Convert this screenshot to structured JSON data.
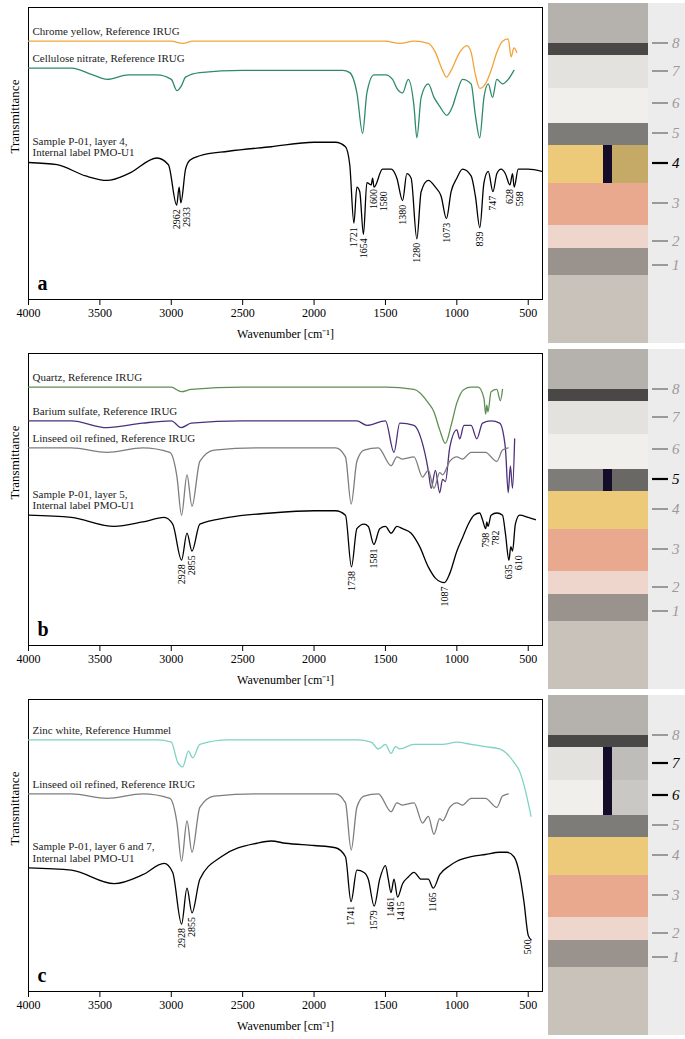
{
  "chart_data": [
    {
      "type": "line",
      "panel_label": "a",
      "x_label": "Wavenumber [cm⁻¹]",
      "y_label": "Transmittance",
      "xlim": [
        4000,
        400
      ],
      "xticks": [
        4000,
        3500,
        3000,
        2500,
        2000,
        1500,
        1000,
        500
      ],
      "ylim": [
        -20,
        110
      ],
      "tick_labels": "x",
      "series": [
        {
          "name": "Chrome yellow, Reference IRUG",
          "color": "#f2a33a",
          "x": [
            4000,
            3600,
            3000,
            2920,
            2850,
            2400,
            2000,
            1700,
            1500,
            1400,
            1300,
            1200,
            1150,
            1100,
            1073,
            1040,
            980,
            930,
            900,
            870,
            839,
            800,
            760,
            720,
            680,
            640,
            620,
            600,
            580
          ],
          "values": [
            95,
            95,
            95,
            94,
            95,
            95,
            95,
            95,
            95,
            94,
            95,
            94,
            90,
            82,
            79,
            82,
            90,
            93,
            90,
            80,
            74,
            76,
            82,
            90,
            95,
            96,
            88,
            92,
            90
          ]
        },
        {
          "name": "Cellulose nitrate, Reference IRUG",
          "color": "#2e8a6b",
          "x": [
            4000,
            3700,
            3550,
            3450,
            3300,
            3100,
            3000,
            2960,
            2930,
            2900,
            2800,
            2500,
            2200,
            2000,
            1800,
            1750,
            1700,
            1660,
            1630,
            1580,
            1500,
            1450,
            1420,
            1380,
            1340,
            1300,
            1280,
            1250,
            1200,
            1160,
            1120,
            1070,
            1030,
            1000,
            960,
            900,
            870,
            840,
            810,
            780,
            750,
            720,
            680,
            640,
            600
          ],
          "values": [
            83,
            83,
            80,
            78,
            80,
            80,
            78,
            73,
            75,
            79,
            81,
            82,
            82,
            82,
            82,
            81,
            72,
            54,
            72,
            80,
            80,
            78,
            74,
            72,
            78,
            66,
            52,
            70,
            76,
            70,
            66,
            62,
            66,
            72,
            78,
            76,
            62,
            52,
            70,
            76,
            70,
            78,
            76,
            78,
            82
          ]
        },
        {
          "name": "Sample P-01, layer 4,\nInternal label PMO-U1",
          "color": "#000000",
          "x": [
            4000,
            3800,
            3600,
            3450,
            3300,
            3100,
            3020,
            2962,
            2945,
            2933,
            2900,
            2870,
            2800,
            2600,
            2300,
            2000,
            1850,
            1780,
            1750,
            1721,
            1700,
            1680,
            1654,
            1630,
            1600,
            1590,
            1580,
            1520,
            1460,
            1420,
            1380,
            1350,
            1320,
            1280,
            1250,
            1200,
            1150,
            1110,
            1073,
            1040,
            1000,
            960,
            900,
            870,
            839,
            810,
            780,
            747,
            720,
            690,
            660,
            628,
            610,
            598,
            570,
            500,
            400
          ],
          "values": [
            41,
            40,
            35,
            33,
            36,
            43,
            40,
            22,
            30,
            23,
            38,
            42,
            44,
            46,
            48,
            50,
            50,
            48,
            40,
            14,
            30,
            28,
            9,
            32,
            31,
            34,
            30,
            38,
            38,
            34,
            24,
            36,
            34,
            7,
            28,
            33,
            30,
            26,
            16,
            28,
            34,
            38,
            35,
            26,
            12,
            32,
            37,
            28,
            36,
            38,
            36,
            31,
            36,
            30,
            38,
            38,
            37
          ],
          "annotations": [
            2962,
            2933,
            1721,
            1654,
            1600,
            1580,
            1380,
            1280,
            1073,
            839,
            747,
            628,
            598
          ]
        }
      ],
      "layers": [
        1,
        2,
        3,
        4,
        5,
        6,
        7,
        8
      ],
      "analyzed_layers": [
        4
      ]
    },
    {
      "type": "line",
      "panel_label": "b",
      "x_label": "Wavenumber [cm⁻¹]",
      "y_label": "Transmittance",
      "xlim": [
        4000,
        400
      ],
      "xticks": [
        4000,
        3500,
        3000,
        2500,
        2000,
        1500,
        1000,
        500
      ],
      "ylim": [
        -20,
        110
      ],
      "tick_labels": "x",
      "series": [
        {
          "name": "Quartz, Reference IRUG",
          "color": "#5e8e52",
          "x": [
            4000,
            3500,
            3000,
            2930,
            2860,
            2500,
            2000,
            1500,
            1300,
            1200,
            1160,
            1120,
            1080,
            1040,
            1000,
            950,
            900,
            850,
            810,
            798,
            790,
            782,
            760,
            720,
            695,
            680
          ],
          "values": [
            95,
            95,
            95,
            93,
            94,
            95,
            95,
            95,
            94,
            88,
            84,
            76,
            70,
            78,
            88,
            94,
            95,
            95,
            90,
            83,
            87,
            84,
            93,
            94,
            89,
            94
          ]
        },
        {
          "name": "Barium sulfate, Reference IRUG",
          "color": "#4d2f7a",
          "x": [
            4000,
            3700,
            3450,
            3200,
            3000,
            2930,
            2860,
            2500,
            2000,
            1700,
            1630,
            1500,
            1440,
            1400,
            1300,
            1250,
            1200,
            1180,
            1150,
            1120,
            1100,
            1080,
            1050,
            1000,
            980,
            950,
            900,
            860,
            820,
            760,
            700,
            660,
            640,
            625,
            610,
            595
          ],
          "values": [
            80,
            80,
            77,
            79,
            80,
            77,
            79,
            80,
            80,
            80,
            78,
            80,
            66,
            79,
            78,
            72,
            58,
            50,
            58,
            48,
            54,
            53,
            68,
            76,
            72,
            78,
            78,
            72,
            79,
            80,
            79,
            68,
            48,
            60,
            50,
            72
          ]
        },
        {
          "name": "Linseed oil refined, Reference IRUG",
          "color": "#7d7d7d",
          "x": [
            4000,
            3700,
            3450,
            3200,
            3010,
            2960,
            2928,
            2890,
            2855,
            2800,
            2700,
            2400,
            2000,
            1850,
            1780,
            1740,
            1700,
            1650,
            1550,
            1460,
            1420,
            1380,
            1300,
            1240,
            1200,
            1160,
            1120,
            1100,
            1050,
            1000,
            960,
            900,
            800,
            720,
            680,
            640
          ],
          "values": [
            68,
            68,
            66,
            68,
            66,
            55,
            38,
            56,
            42,
            62,
            67,
            68,
            68,
            68,
            64,
            43,
            62,
            67,
            68,
            60,
            64,
            63,
            64,
            55,
            58,
            50,
            57,
            56,
            62,
            64,
            63,
            66,
            66,
            62,
            67,
            68
          ]
        },
        {
          "name": "Sample P-01, layer 5,\nInternal label PMO-U1",
          "color": "#000000",
          "x": [
            4000,
            3700,
            3400,
            3200,
            3050,
            2990,
            2928,
            2890,
            2855,
            2800,
            2600,
            2300,
            2000,
            1850,
            1780,
            1738,
            1700,
            1650,
            1620,
            1581,
            1540,
            1500,
            1460,
            1420,
            1380,
            1320,
            1260,
            1200,
            1150,
            1087,
            1050,
            1000,
            960,
            920,
            880,
            840,
            820,
            798,
            790,
            782,
            760,
            720,
            680,
            660,
            635,
            622,
            610,
            590,
            560,
            500,
            450
          ],
          "values": [
            38,
            37,
            33,
            35,
            37,
            34,
            18,
            30,
            22,
            34,
            37,
            39,
            40,
            40,
            38,
            15,
            32,
            34,
            33,
            25,
            32,
            33,
            30,
            33,
            32,
            30,
            24,
            15,
            10,
            8,
            12,
            22,
            28,
            34,
            38,
            39,
            36,
            32,
            35,
            33,
            38,
            39,
            38,
            30,
            18,
            24,
            22,
            34,
            38,
            37,
            36
          ],
          "annotations": [
            2928,
            2855,
            1738,
            1581,
            1087,
            798,
            782,
            635,
            610
          ]
        }
      ],
      "layers": [
        1,
        2,
        3,
        4,
        5,
        6,
        7,
        8
      ],
      "analyzed_layers": [
        5
      ]
    },
    {
      "type": "line",
      "panel_label": "c",
      "x_label": "Wavenumber [cm⁻¹]",
      "y_label": "Transmittance",
      "xlim": [
        4000,
        400
      ],
      "xticks": [
        4000,
        3500,
        3000,
        2500,
        2000,
        1500,
        1000,
        500
      ],
      "ylim": [
        -20,
        110
      ],
      "tick_labels": "x",
      "series": [
        {
          "name": "Zinc white, Reference Hummel",
          "color": "#7fd3c4",
          "x": [
            4000,
            3500,
            3100,
            3000,
            2955,
            2920,
            2880,
            2850,
            2800,
            2600,
            2000,
            1700,
            1600,
            1550,
            1500,
            1460,
            1430,
            1400,
            1300,
            1100,
            1000,
            900,
            800,
            700,
            650,
            600,
            560,
            530,
            500,
            480
          ],
          "values": [
            92,
            92,
            92,
            91,
            82,
            80,
            87,
            84,
            90,
            92,
            92,
            92,
            91,
            88,
            90,
            86,
            89,
            88,
            90,
            90,
            91,
            90,
            89,
            88,
            86,
            82,
            78,
            72,
            64,
            58
          ]
        },
        {
          "name": "Linseed oil refined, Reference IRUG",
          "color": "#7d7d7d",
          "x": [
            4000,
            3700,
            3450,
            3200,
            3010,
            2960,
            2928,
            2890,
            2855,
            2800,
            2700,
            2400,
            2000,
            1850,
            1780,
            1740,
            1700,
            1650,
            1550,
            1460,
            1420,
            1380,
            1300,
            1240,
            1200,
            1160,
            1120,
            1100,
            1050,
            1000,
            960,
            900,
            800,
            720,
            680,
            640
          ],
          "values": [
            68,
            68,
            66,
            68,
            66,
            55,
            38,
            56,
            42,
            62,
            67,
            68,
            68,
            68,
            64,
            43,
            62,
            67,
            68,
            60,
            64,
            63,
            64,
            55,
            58,
            50,
            57,
            56,
            62,
            64,
            63,
            66,
            66,
            62,
            67,
            68
          ]
        },
        {
          "name": "Sample P-01, layer 6 and 7,\nInternal label PMO-U1",
          "color": "#000000",
          "x": [
            4000,
            3700,
            3400,
            3200,
            3050,
            2990,
            2928,
            2890,
            2855,
            2800,
            2650,
            2400,
            2300,
            2200,
            2000,
            1850,
            1780,
            1741,
            1700,
            1650,
            1620,
            1579,
            1540,
            1500,
            1480,
            1461,
            1440,
            1415,
            1380,
            1340,
            1300,
            1250,
            1200,
            1165,
            1120,
            1050,
            1000,
            900,
            800,
            700,
            650,
            600,
            560,
            530,
            500,
            480
          ],
          "values": [
            35,
            34,
            28,
            32,
            37,
            33,
            10,
            26,
            15,
            30,
            40,
            46,
            47,
            46,
            45,
            44,
            40,
            20,
            34,
            33,
            30,
            18,
            30,
            36,
            30,
            24,
            30,
            22,
            28,
            31,
            33,
            30,
            30,
            26,
            32,
            36,
            38,
            40,
            41,
            42,
            42,
            40,
            32,
            20,
            5,
            3
          ],
          "annotations": [
            2928,
            2855,
            1741,
            1579,
            1461,
            1415,
            1165,
            500
          ]
        }
      ],
      "layers": [
        1,
        2,
        3,
        4,
        5,
        6,
        7,
        8
      ],
      "analyzed_layers": [
        6,
        7
      ]
    }
  ]
}
